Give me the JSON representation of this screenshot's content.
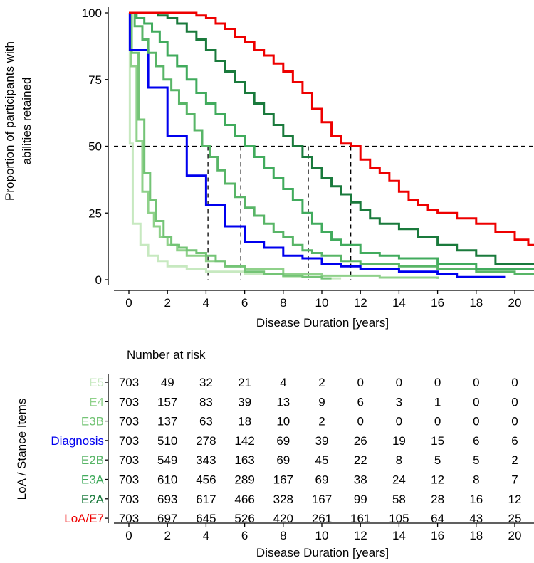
{
  "chart_data": [
    {
      "type": "line",
      "subtype": "step",
      "ylabel_line1": "Proportion of participants with",
      "ylabel_line2": "abilities retained",
      "xlabel": "Disease Duration [years]",
      "xlim": [
        -1,
        21
      ],
      "ylim": [
        0,
        100
      ],
      "x_ticks": [
        0,
        2,
        4,
        6,
        8,
        10,
        12,
        14,
        16,
        18,
        20
      ],
      "y_ticks": [
        0,
        25,
        50,
        75,
        100
      ],
      "reference_line_y": 50,
      "median_markers": [
        4.1,
        5.8,
        9.3,
        11.5
      ],
      "series": [
        {
          "name": "E5",
          "color": "#c7e9c0",
          "x": [
            0,
            0.05,
            0.2,
            0.4,
            0.6,
            0.8,
            1.0,
            1.5,
            2.0,
            3.0,
            4.0,
            6.0,
            8.0,
            10.0,
            11.0
          ],
          "y": [
            100,
            51,
            21,
            21,
            13,
            13,
            9,
            7,
            5,
            4,
            3,
            2,
            1,
            0.5,
            0.5
          ]
        },
        {
          "name": "E4",
          "color": "#8fd18a",
          "x": [
            0,
            0.1,
            0.4,
            0.7,
            1.0,
            1.3,
            1.6,
            2.0,
            2.5,
            3.0,
            4.0,
            5.0,
            6.0,
            8.0,
            10.0,
            13.0,
            16.0
          ],
          "y": [
            100,
            80,
            52,
            33,
            25,
            20,
            16,
            13,
            11,
            9,
            7,
            5,
            4,
            2,
            1.5,
            0.8,
            0.3
          ]
        },
        {
          "name": "E3B",
          "color": "#74c476",
          "x": [
            0,
            0.15,
            0.5,
            0.8,
            1.1,
            1.4,
            1.8,
            2.2,
            2.6,
            3.0,
            3.5,
            4.0,
            4.5,
            5.0,
            6.0,
            7.0,
            8.0,
            9.0,
            10.0,
            10.5
          ],
          "y": [
            100,
            85,
            60,
            40,
            30,
            22,
            16,
            13,
            12,
            11,
            10,
            9,
            7,
            5,
            3,
            2,
            1.5,
            1,
            0.5,
            0.5
          ]
        },
        {
          "name": "Diagnosis",
          "color": "#0000ee",
          "x": [
            0,
            0.05,
            1.0,
            2.0,
            3.0,
            4.0,
            5.0,
            6.0,
            7.0,
            8.0,
            9.0,
            10.0,
            11.0,
            12.0,
            14.0,
            16.0,
            17.0,
            19.5
          ],
          "y": [
            100,
            86,
            72,
            54,
            39,
            28,
            20,
            14,
            12,
            9,
            8,
            6,
            5,
            4,
            3,
            2,
            1,
            1
          ]
        },
        {
          "name": "E2B",
          "color": "#58b567",
          "x": [
            0,
            0.3,
            0.7,
            1.0,
            1.4,
            1.8,
            2.2,
            2.6,
            3.0,
            3.4,
            3.8,
            4.2,
            4.6,
            5.0,
            5.5,
            6.0,
            6.5,
            7.0,
            7.5,
            8.0,
            8.5,
            9.0,
            9.5,
            10.0,
            11.0,
            12.0,
            14.0,
            16.0,
            18.0,
            20.0,
            21.0
          ],
          "y": [
            100,
            95,
            90,
            85,
            80,
            75,
            71,
            66,
            62,
            56,
            50,
            46,
            41,
            36,
            31,
            27,
            24,
            21,
            18,
            16,
            13,
            11,
            10,
            9,
            7,
            6,
            5,
            4,
            3,
            2,
            2
          ]
        },
        {
          "name": "E3A",
          "color": "#41ab5d",
          "x": [
            0,
            0.4,
            0.8,
            1.2,
            1.6,
            2.0,
            2.5,
            3.0,
            3.5,
            4.0,
            4.5,
            5.0,
            5.5,
            6.0,
            6.5,
            7.0,
            7.5,
            8.0,
            8.5,
            9.0,
            9.5,
            10.0,
            10.5,
            11.0,
            12.0,
            13.0,
            14.0,
            16.0,
            18.0,
            21.0
          ],
          "y": [
            100,
            98,
            96,
            93,
            89,
            84,
            80,
            75,
            70,
            66,
            62,
            58,
            54,
            50,
            46,
            42,
            38,
            34,
            30,
            25,
            21,
            18,
            15,
            13,
            10,
            9,
            8,
            6,
            4,
            4
          ]
        },
        {
          "name": "E2A",
          "color": "#1a7a3c",
          "x": [
            0,
            1.0,
            1.5,
            2.0,
            2.5,
            3.0,
            3.5,
            4.0,
            4.5,
            5.0,
            5.5,
            6.0,
            6.5,
            7.0,
            7.5,
            8.0,
            8.5,
            9.0,
            9.5,
            10.0,
            10.5,
            11.0,
            11.5,
            12.0,
            12.5,
            13.0,
            14.0,
            15.0,
            16.0,
            17.0,
            18.0,
            19.0,
            21.0
          ],
          "y": [
            100,
            100,
            99,
            98,
            96,
            93,
            90,
            86,
            82,
            78,
            74,
            70,
            66,
            62,
            58,
            54,
            50,
            46,
            42,
            38,
            35,
            32,
            29,
            26,
            23,
            21,
            19,
            16,
            13,
            11,
            9,
            6,
            6
          ]
        },
        {
          "name": "LoA/E7",
          "color": "#ee0000",
          "x": [
            0,
            2.8,
            3.5,
            4.0,
            4.5,
            5.0,
            5.5,
            6.0,
            6.5,
            7.0,
            7.5,
            8.0,
            8.5,
            9.0,
            9.5,
            10.0,
            10.5,
            11.0,
            11.5,
            12.0,
            12.5,
            13.0,
            13.5,
            14.0,
            14.5,
            15.0,
            15.5,
            16.0,
            17.0,
            18.0,
            19.0,
            20.0,
            20.7,
            21.0
          ],
          "y": [
            100,
            100,
            99,
            98,
            96,
            94,
            91,
            89,
            86,
            84,
            81,
            78,
            74,
            70,
            64,
            59,
            54,
            51,
            50,
            45,
            42,
            40,
            37,
            33,
            30,
            28,
            26,
            25,
            23,
            21,
            18,
            15,
            13,
            13
          ]
        }
      ]
    },
    {
      "type": "table",
      "title": "Number at risk",
      "ylabel": "LoA / Stance Items",
      "xlabel": "Disease Duration [years]",
      "columns": [
        0,
        2,
        4,
        6,
        8,
        10,
        12,
        14,
        16,
        18,
        20
      ],
      "rows": [
        {
          "label": "E5",
          "color": "#c7e9c0",
          "values": [
            703,
            49,
            32,
            21,
            4,
            2,
            0,
            0,
            0,
            0,
            0
          ]
        },
        {
          "label": "E4",
          "color": "#8fd18a",
          "values": [
            703,
            157,
            83,
            39,
            13,
            9,
            6,
            3,
            1,
            0,
            0
          ]
        },
        {
          "label": "E3B",
          "color": "#74c476",
          "values": [
            703,
            137,
            63,
            18,
            10,
            2,
            0,
            0,
            0,
            0,
            0
          ]
        },
        {
          "label": "Diagnosis",
          "color": "#0000ee",
          "values": [
            703,
            510,
            278,
            142,
            69,
            39,
            26,
            19,
            15,
            6,
            6
          ]
        },
        {
          "label": "E2B",
          "color": "#58b567",
          "values": [
            703,
            549,
            343,
            163,
            69,
            45,
            22,
            8,
            5,
            5,
            2
          ]
        },
        {
          "label": "E3A",
          "color": "#41ab5d",
          "values": [
            703,
            610,
            456,
            289,
            167,
            69,
            38,
            24,
            12,
            8,
            7
          ]
        },
        {
          "label": "E2A",
          "color": "#1a7a3c",
          "values": [
            703,
            693,
            617,
            466,
            328,
            167,
            99,
            58,
            28,
            16,
            12
          ]
        },
        {
          "label": "LoA/E7",
          "color": "#ee0000",
          "values": [
            703,
            697,
            645,
            526,
            420,
            261,
            161,
            105,
            64,
            43,
            25
          ]
        }
      ]
    }
  ]
}
